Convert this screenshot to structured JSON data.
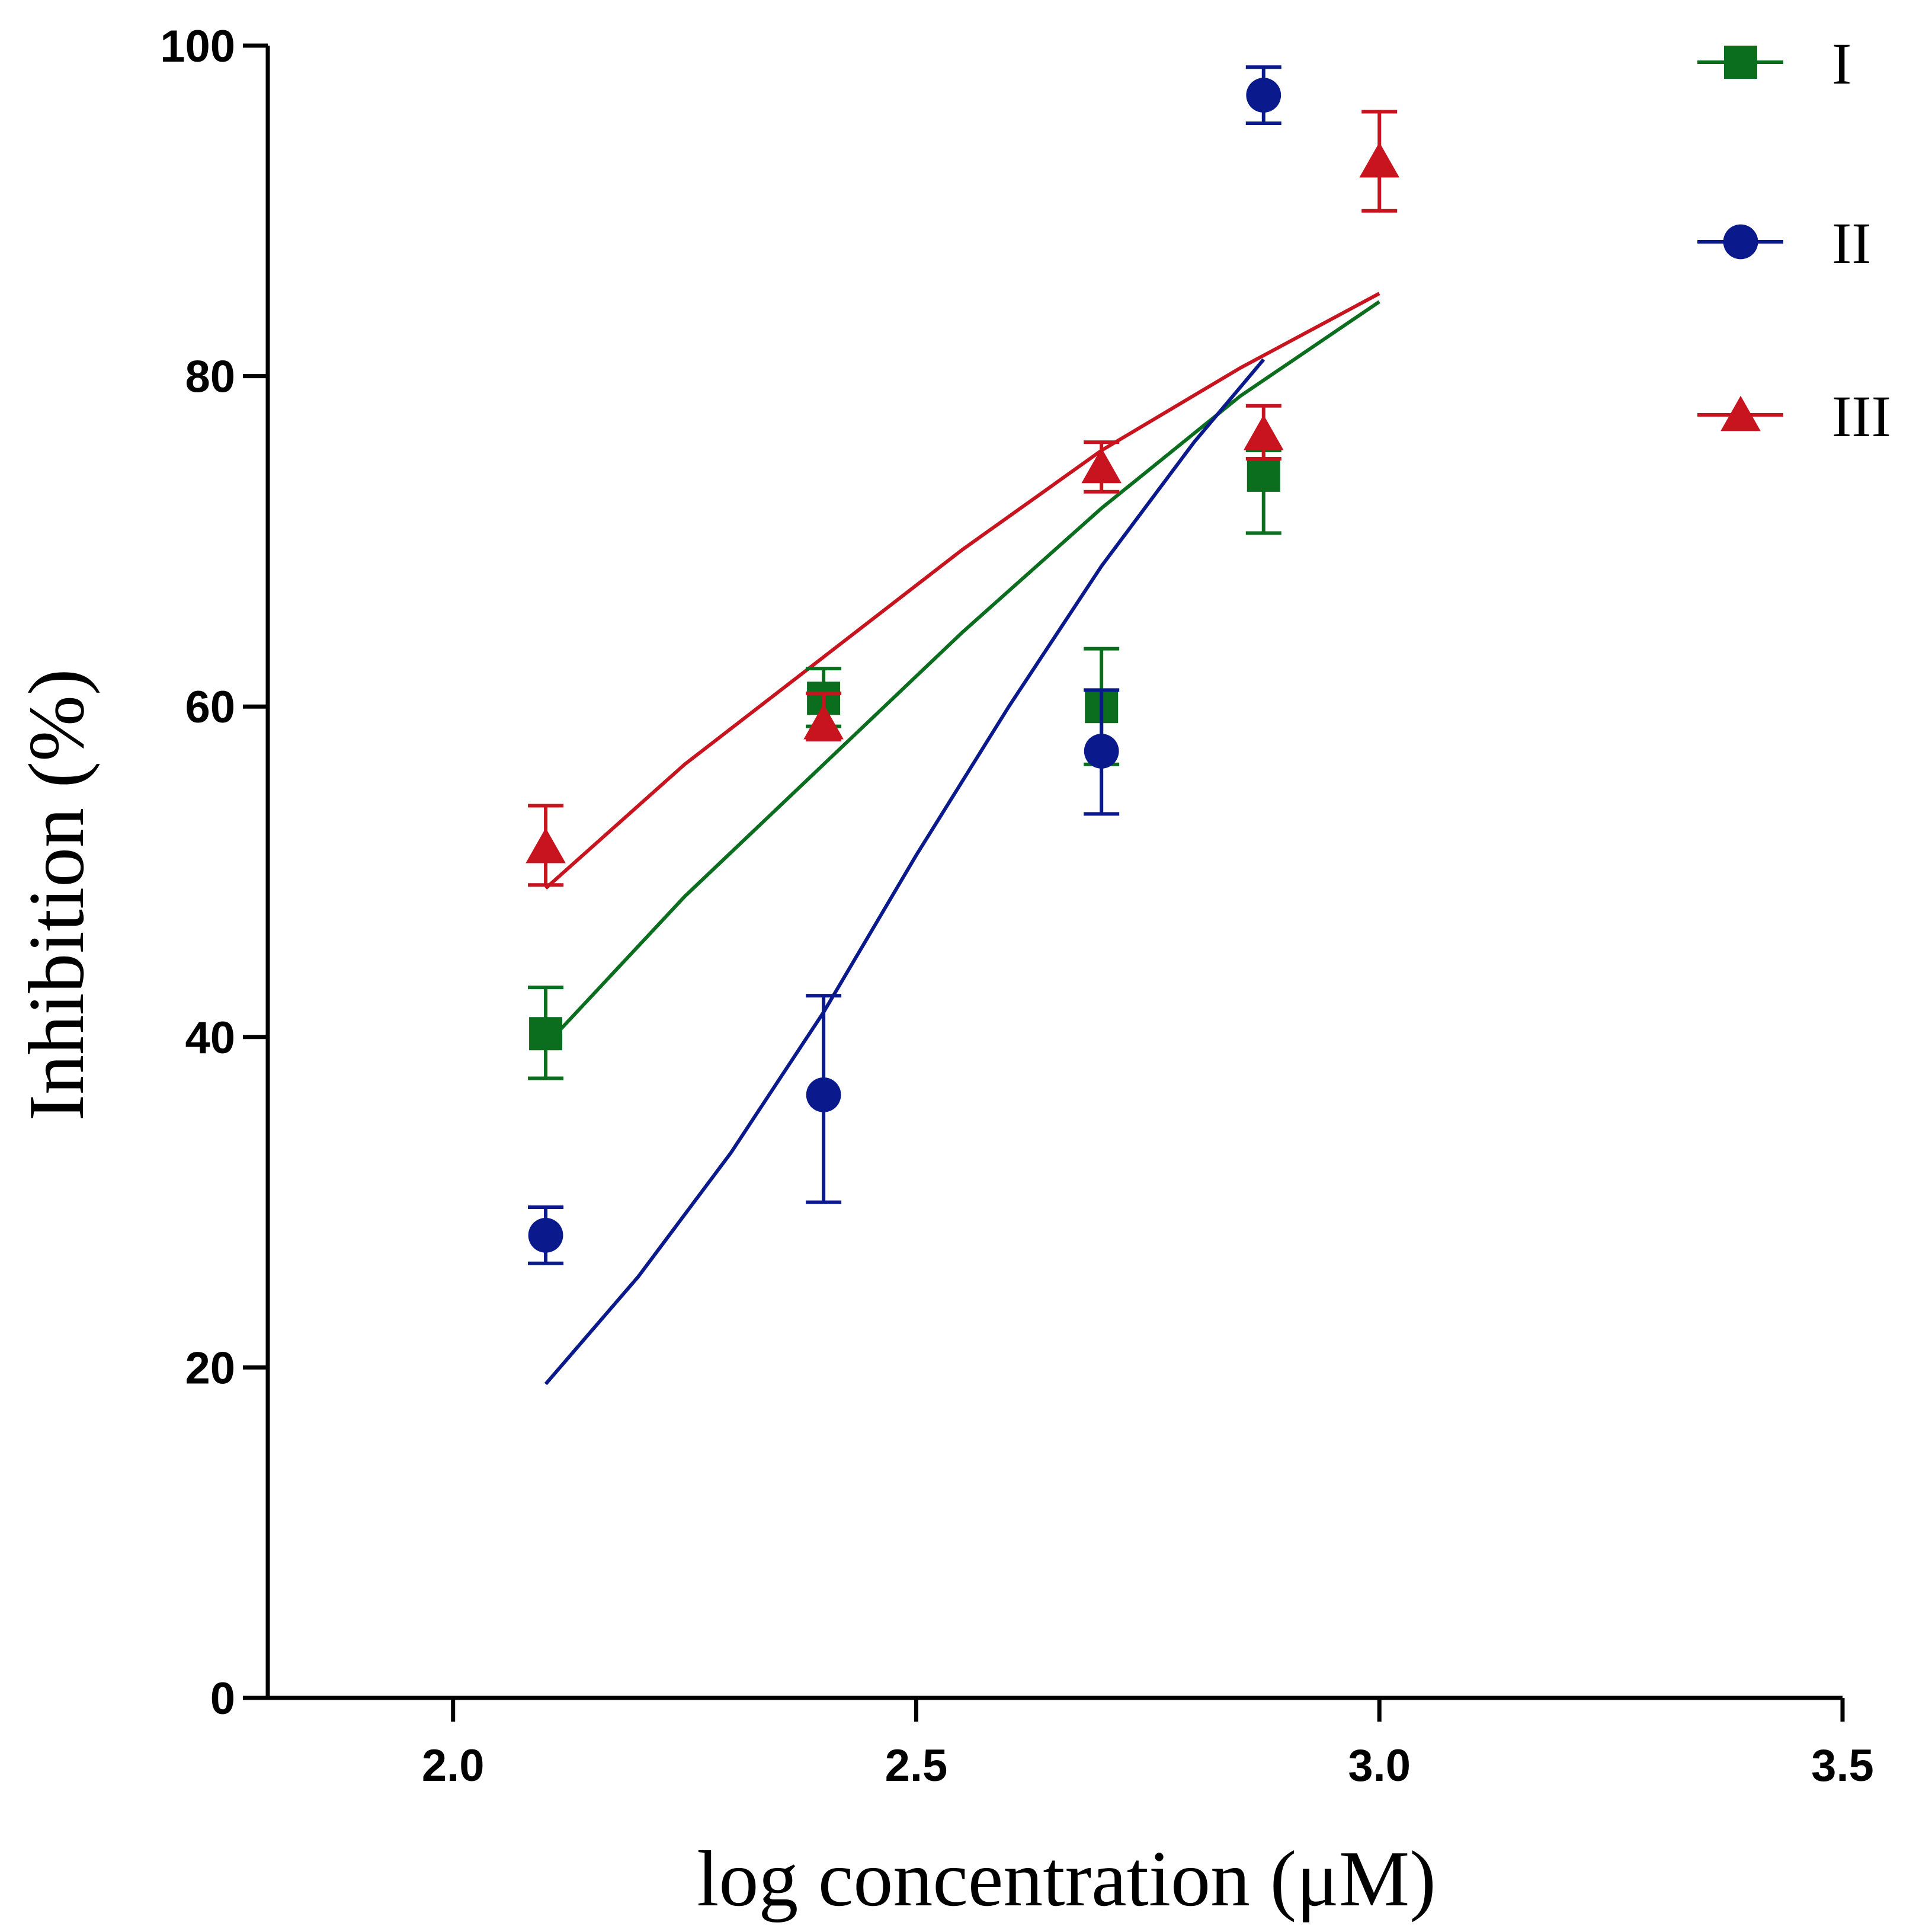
{
  "chart_data": {
    "type": "scatter",
    "title": "",
    "xlabel": "log concentration (μM)",
    "ylabel": "Inhibition (%)",
    "xlim": [
      1.8,
      3.5
    ],
    "ylim": [
      0,
      100
    ],
    "x_ticks": [
      2.0,
      2.5,
      3.0,
      3.5
    ],
    "x_tick_labels": [
      "2.0",
      "2.5",
      "3.0",
      "3.5"
    ],
    "y_ticks": [
      0,
      20,
      40,
      60,
      80,
      100
    ],
    "y_tick_labels": [
      "0",
      "20",
      "40",
      "60",
      "80",
      "100"
    ],
    "grid": false,
    "legend_position": "top-right",
    "series": [
      {
        "name": "I",
        "color": "#0a6e1e",
        "marker": "square",
        "points": [
          {
            "x": 2.1,
            "y": 40.2,
            "err_low": 37.5,
            "err_high": 43.0
          },
          {
            "x": 2.4,
            "y": 60.5,
            "err_low": 58.8,
            "err_high": 62.3
          },
          {
            "x": 2.7,
            "y": 60.0,
            "err_low": 56.5,
            "err_high": 63.5
          },
          {
            "x": 2.875,
            "y": 74.0,
            "err_low": 70.5,
            "err_high": 75.5
          }
        ],
        "fit": [
          {
            "x": 2.1,
            "y": 39.5
          },
          {
            "x": 2.25,
            "y": 48.5
          },
          {
            "x": 2.4,
            "y": 56.5
          },
          {
            "x": 2.55,
            "y": 64.5
          },
          {
            "x": 2.7,
            "y": 72.0
          },
          {
            "x": 2.85,
            "y": 78.8
          },
          {
            "x": 3.0,
            "y": 84.5
          }
        ]
      },
      {
        "name": "II",
        "color": "#0a1a8c",
        "marker": "circle",
        "points": [
          {
            "x": 2.1,
            "y": 28.0,
            "err_low": 26.3,
            "err_high": 29.7
          },
          {
            "x": 2.4,
            "y": 36.5,
            "err_low": 30.0,
            "err_high": 42.5
          },
          {
            "x": 2.7,
            "y": 57.3,
            "err_low": 53.5,
            "err_high": 61.0
          },
          {
            "x": 2.875,
            "y": 97.0,
            "err_low": 95.3,
            "err_high": 98.7
          }
        ],
        "fit": [
          {
            "x": 2.1,
            "y": 19.0
          },
          {
            "x": 2.2,
            "y": 25.5
          },
          {
            "x": 2.3,
            "y": 33.0
          },
          {
            "x": 2.4,
            "y": 41.5
          },
          {
            "x": 2.5,
            "y": 51.0
          },
          {
            "x": 2.6,
            "y": 60.0
          },
          {
            "x": 2.7,
            "y": 68.5
          },
          {
            "x": 2.8,
            "y": 76.0
          },
          {
            "x": 2.875,
            "y": 81.0
          }
        ]
      },
      {
        "name": "III",
        "color": "#c8141e",
        "marker": "triangle",
        "points": [
          {
            "x": 2.1,
            "y": 51.5,
            "err_low": 49.2,
            "err_high": 54.0
          },
          {
            "x": 2.4,
            "y": 59.0,
            "err_low": 58.0,
            "err_high": 60.8
          },
          {
            "x": 2.7,
            "y": 74.5,
            "err_low": 73.0,
            "err_high": 76.0
          },
          {
            "x": 2.875,
            "y": 76.5,
            "err_low": 75.0,
            "err_high": 78.2
          },
          {
            "x": 3.0,
            "y": 93.0,
            "err_low": 90.0,
            "err_high": 96.0
          }
        ],
        "fit": [
          {
            "x": 2.1,
            "y": 49.0
          },
          {
            "x": 2.25,
            "y": 56.5
          },
          {
            "x": 2.4,
            "y": 63.0
          },
          {
            "x": 2.55,
            "y": 69.5
          },
          {
            "x": 2.7,
            "y": 75.5
          },
          {
            "x": 2.85,
            "y": 80.5
          },
          {
            "x": 3.0,
            "y": 85.0
          }
        ]
      }
    ]
  }
}
